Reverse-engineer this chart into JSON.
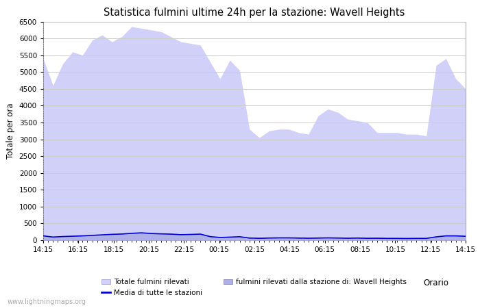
{
  "title": "Statistica fulmini ultime 24h per la stazione: Wavell Heights",
  "xlabel": "Orario",
  "ylabel": "Totale per ora",
  "watermark": "www.lightningmaps.org",
  "x_labels": [
    "14:15",
    "16:15",
    "18:15",
    "20:15",
    "22:15",
    "00:15",
    "02:15",
    "04:15",
    "06:15",
    "08:15",
    "10:15",
    "12:15",
    "14:15"
  ],
  "ylim": [
    0,
    6500
  ],
  "yticks": [
    0,
    500,
    1000,
    1500,
    2000,
    2500,
    3000,
    3500,
    4000,
    4500,
    5000,
    5500,
    6000,
    6500
  ],
  "fill_color_light": "#d0d0f8",
  "fill_color_dark": "#b0b0e8",
  "line_color": "#0000cc",
  "bg_color": "#ffffff",
  "grid_color": "#cccccc",
  "total_values": [
    5400,
    4600,
    5250,
    5600,
    5500,
    5950,
    6100,
    5900,
    6050,
    6350,
    6300,
    6250,
    6200,
    6050,
    5900,
    5850,
    5800,
    5300,
    4800,
    5350,
    5050,
    3300,
    3050,
    3250,
    3300,
    3300,
    3200,
    3150,
    3700,
    3900,
    3800,
    3600,
    3550,
    3500,
    3200,
    3200,
    3200,
    3150,
    3150,
    3100,
    5200,
    5400,
    4800,
    4500
  ],
  "station_values": [
    150,
    100,
    120,
    130,
    140,
    160,
    175,
    190,
    200,
    220,
    240,
    220,
    210,
    200,
    175,
    185,
    195,
    120,
    90,
    100,
    115,
    70,
    65,
    70,
    75,
    75,
    70,
    65,
    70,
    75,
    70,
    65,
    70,
    65,
    65,
    60,
    60,
    58,
    60,
    60,
    110,
    145,
    145,
    130
  ],
  "media_values": [
    130,
    95,
    110,
    120,
    130,
    145,
    160,
    175,
    185,
    205,
    220,
    200,
    190,
    182,
    165,
    172,
    182,
    108,
    82,
    92,
    105,
    65,
    58,
    65,
    70,
    70,
    65,
    60,
    65,
    70,
    65,
    60,
    65,
    58,
    60,
    55,
    55,
    52,
    55,
    55,
    100,
    130,
    130,
    118
  ],
  "n_points": 44
}
